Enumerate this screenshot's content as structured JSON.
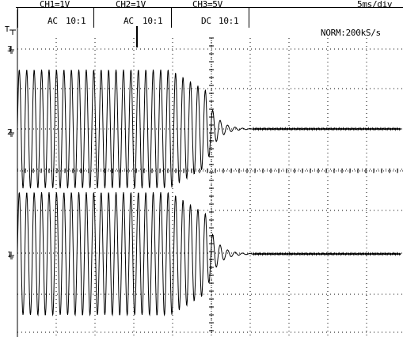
{
  "header": {
    "ch1": "CH1=1V",
    "ch2": "CH2=1V",
    "ch3": "CH3=5V",
    "timebase": "5ms/div",
    "ch1_coupling": "AC",
    "ch1_probe": "10:1",
    "ch2_coupling": "AC",
    "ch2_probe": "10:1",
    "ch3_coupling": "DC",
    "ch3_probe": "10:1",
    "acq_mode": "NORM:200kS/s"
  },
  "markers": {
    "trigger": "T",
    "ch3": "3",
    "ch2": "2",
    "ch1": "1"
  },
  "colors": {
    "trace": "#000000",
    "grid": "#000000",
    "background": "#ffffff"
  }
}
